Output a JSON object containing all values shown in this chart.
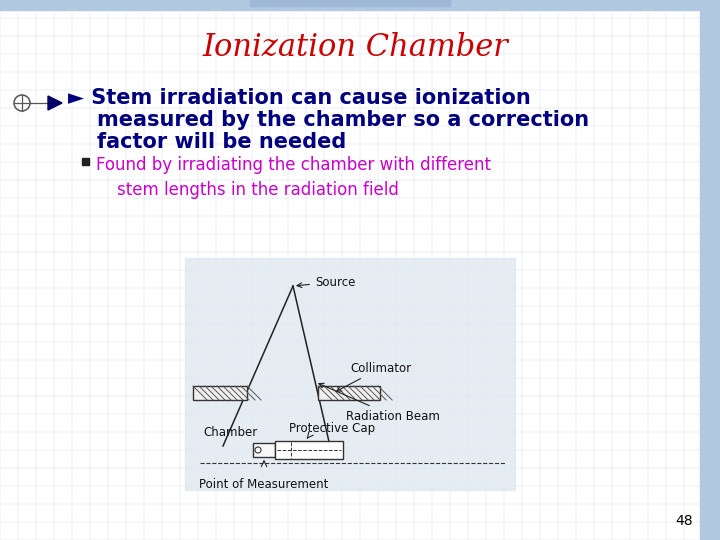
{
  "title": "Ionization Chamber",
  "title_color": "#CC0000",
  "title_fontsize": 22,
  "bg_color": "#f4f6fa",
  "grid_color": "#c0cce0",
  "bullet1_line1": "► Stem irradiation can cause ionization",
  "bullet1_line2": "    measured by the chamber so a correction",
  "bullet1_line3": "    factor will be needed",
  "bullet1_color": "#000080",
  "bullet1_fontsize": 15,
  "sub_bullet_text": "Found by irradiating the chamber with different\n    stem lengths in the radiation field",
  "sub_bullet_color": "#cc00cc",
  "sub_bullet_fontsize": 12,
  "page_number": "48",
  "page_number_color": "#000000",
  "page_number_fontsize": 10,
  "slide_bg": "#ffffff",
  "top_bar_color": "#b0c8e0",
  "right_bar_color": "#b0c8e0",
  "diag_bg": "#dde8f0"
}
